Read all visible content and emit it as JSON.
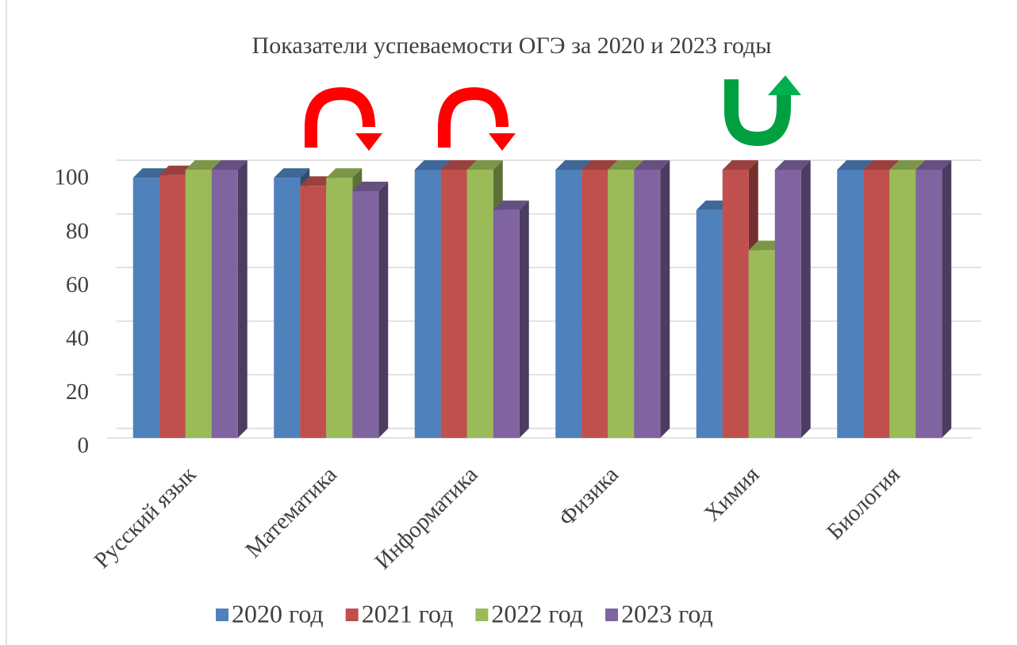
{
  "chart_data": {
    "type": "bar",
    "title": "Показатели успеваемости ОГЭ за 2020 и 2023 годы",
    "categories": [
      "Русский язык",
      "Математика",
      "Информатика",
      "Физика",
      "Химия",
      "Биология"
    ],
    "series": [
      {
        "name": "2020 год",
        "color": "#4f81bd",
        "values": [
          97,
          97,
          100,
          100,
          85,
          100
        ]
      },
      {
        "name": "2021 год",
        "color": "#c0504d",
        "values": [
          98,
          94,
          100,
          100,
          100,
          100
        ]
      },
      {
        "name": "2022 год",
        "color": "#9bbb59",
        "values": [
          100,
          97,
          100,
          100,
          70,
          100
        ]
      },
      {
        "name": "2023 год",
        "color": "#8064a2",
        "values": [
          100,
          92,
          85,
          100,
          100,
          100
        ]
      }
    ],
    "ylim": [
      0,
      100
    ],
    "yticks": [
      0,
      20,
      40,
      60,
      80,
      100
    ],
    "grid": true,
    "legend": "bottom"
  }
}
